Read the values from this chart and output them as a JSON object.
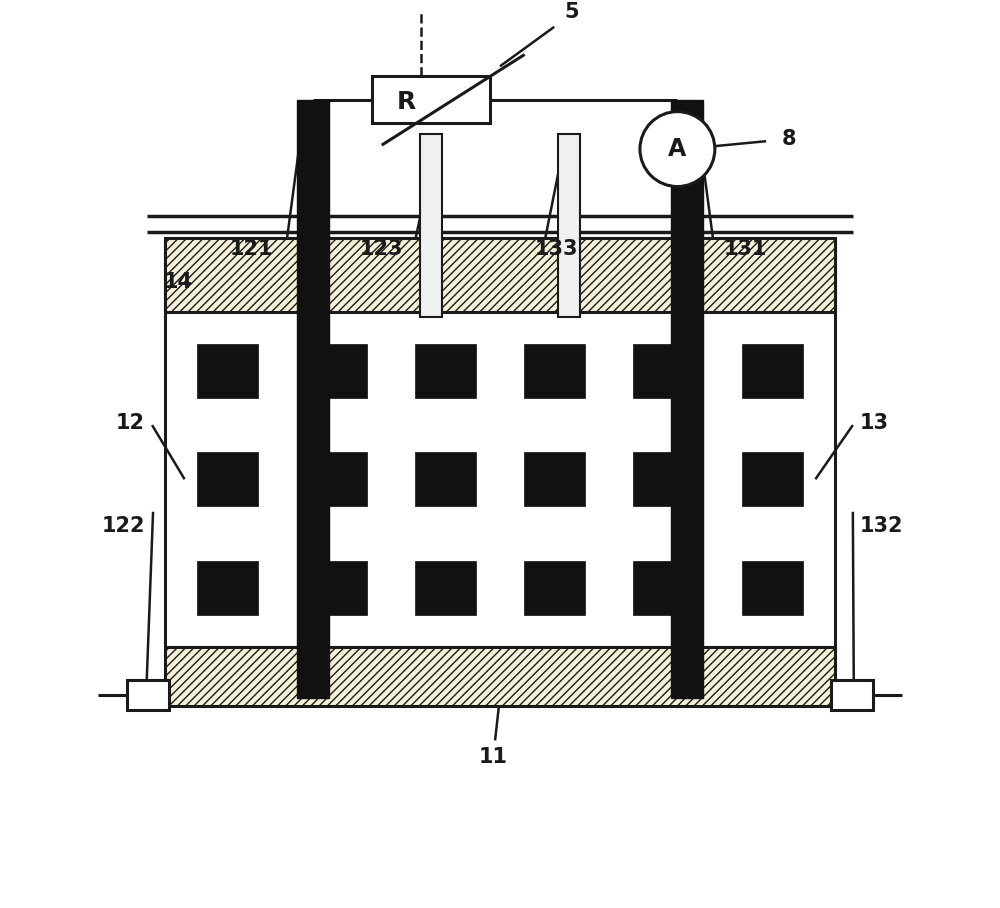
{
  "bg_color": "#ffffff",
  "line_color": "#1a1a1a",
  "hatch_fill": "#f5f0d8",
  "dark_fill": "#111111",
  "light_fill": "#f0f0f0",
  "fig_width": 10.0,
  "fig_height": 9.08
}
